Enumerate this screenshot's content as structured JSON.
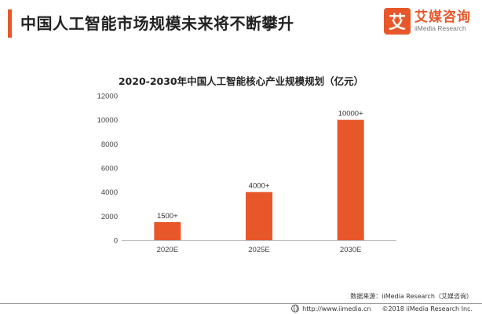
{
  "header": {
    "title": "中国人工智能市场规模未来将不断攀升",
    "logo_mark": "艾",
    "logo_name": "艾媒咨询",
    "logo_sub": "iiMedia Research"
  },
  "colors": {
    "accent": "#e8572a",
    "bar": "#e8572a",
    "axis": "#bbbbbb"
  },
  "chart_data": {
    "type": "bar",
    "title": "2020-2030年中国人工智能核心产业规模规划（亿元）",
    "categories": [
      "2020E",
      "2025E",
      "2030E"
    ],
    "values": [
      1500,
      4000,
      10000
    ],
    "data_labels": [
      "1500+",
      "4000+",
      "10000+"
    ],
    "yticks": [
      0,
      2000,
      4000,
      6000,
      8000,
      10000,
      12000
    ],
    "ylim": [
      0,
      12000
    ],
    "xlabel": "",
    "ylabel": "",
    "grid": false,
    "legend": "none"
  },
  "footer": {
    "source": "数据来源：iiMedia Research（艾媒咨询）",
    "url": "http://www.iimedia.cn",
    "copyright": "©2018  iiMedia Research  Inc."
  }
}
